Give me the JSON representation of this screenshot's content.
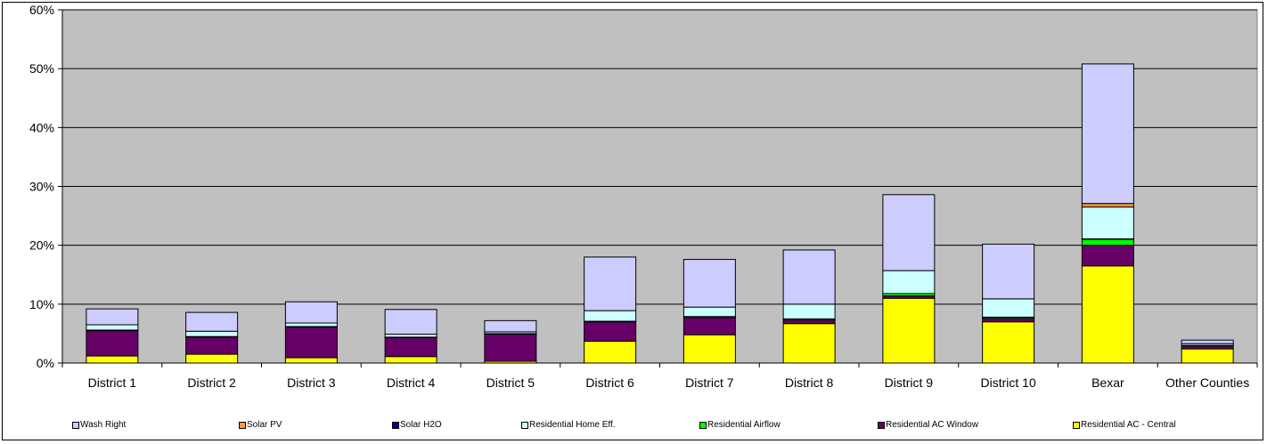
{
  "chart_data": {
    "type": "bar",
    "stacked": true,
    "categories": [
      "District 1",
      "District 2",
      "District 3",
      "District 4",
      "District 5",
      "District 6",
      "District 7",
      "District 8",
      "District 9",
      "District 10",
      "Bexar",
      "Other Counties"
    ],
    "ylim": [
      0,
      60
    ],
    "yticks": [
      "0%",
      "10%",
      "20%",
      "30%",
      "40%",
      "50%",
      "60%"
    ],
    "grid": "horizontal",
    "legend_position": "bottom",
    "plot_background": "#c0c0c0",
    "series": [
      {
        "name": "Residential AC - Central",
        "color": "#ffff00",
        "values": [
          1.2,
          1.5,
          0.9,
          1.1,
          0.3,
          3.7,
          4.8,
          6.7,
          11.0,
          7.0,
          16.5,
          2.4
        ]
      },
      {
        "name": "Residential AC Window",
        "color": "#660066",
        "values": [
          4.3,
          2.9,
          5.2,
          3.2,
          4.6,
          3.3,
          2.9,
          0.6,
          0.4,
          0.6,
          3.5,
          0.5
        ]
      },
      {
        "name": "Residential Airflow",
        "color": "#00ff00",
        "values": [
          0.1,
          0.1,
          0.1,
          0.1,
          0.1,
          0.1,
          0.2,
          0.2,
          0.4,
          0.2,
          1.0,
          0.1
        ]
      },
      {
        "name": "Solar H2O",
        "color": "#000099",
        "values": [
          0.0,
          0.0,
          0.0,
          0.0,
          0.0,
          0.0,
          0.0,
          0.0,
          0.0,
          0.0,
          0.1,
          0.0
        ]
      },
      {
        "name": "Residential Home Eff.",
        "color": "#ccffff",
        "values": [
          0.9,
          0.9,
          0.6,
          0.5,
          0.3,
          1.8,
          1.6,
          2.5,
          3.9,
          3.1,
          5.4,
          0.3
        ]
      },
      {
        "name": "Solar PV",
        "color": "#ff9933",
        "values": [
          0.0,
          0.0,
          0.0,
          0.0,
          0.0,
          0.0,
          0.0,
          0.0,
          0.0,
          0.0,
          0.6,
          0.0
        ]
      },
      {
        "name": "Wash Right",
        "color": "#ccccff",
        "values": [
          2.7,
          3.2,
          3.6,
          4.2,
          1.9,
          9.1,
          8.1,
          9.2,
          12.9,
          9.3,
          23.7,
          0.6
        ]
      }
    ],
    "legend_order": [
      "Wash Right",
      "Solar PV",
      "Solar H2O",
      "Residential Home Eff.",
      "Residential Airflow",
      "Residential AC Window",
      "Residential AC - Central"
    ]
  }
}
